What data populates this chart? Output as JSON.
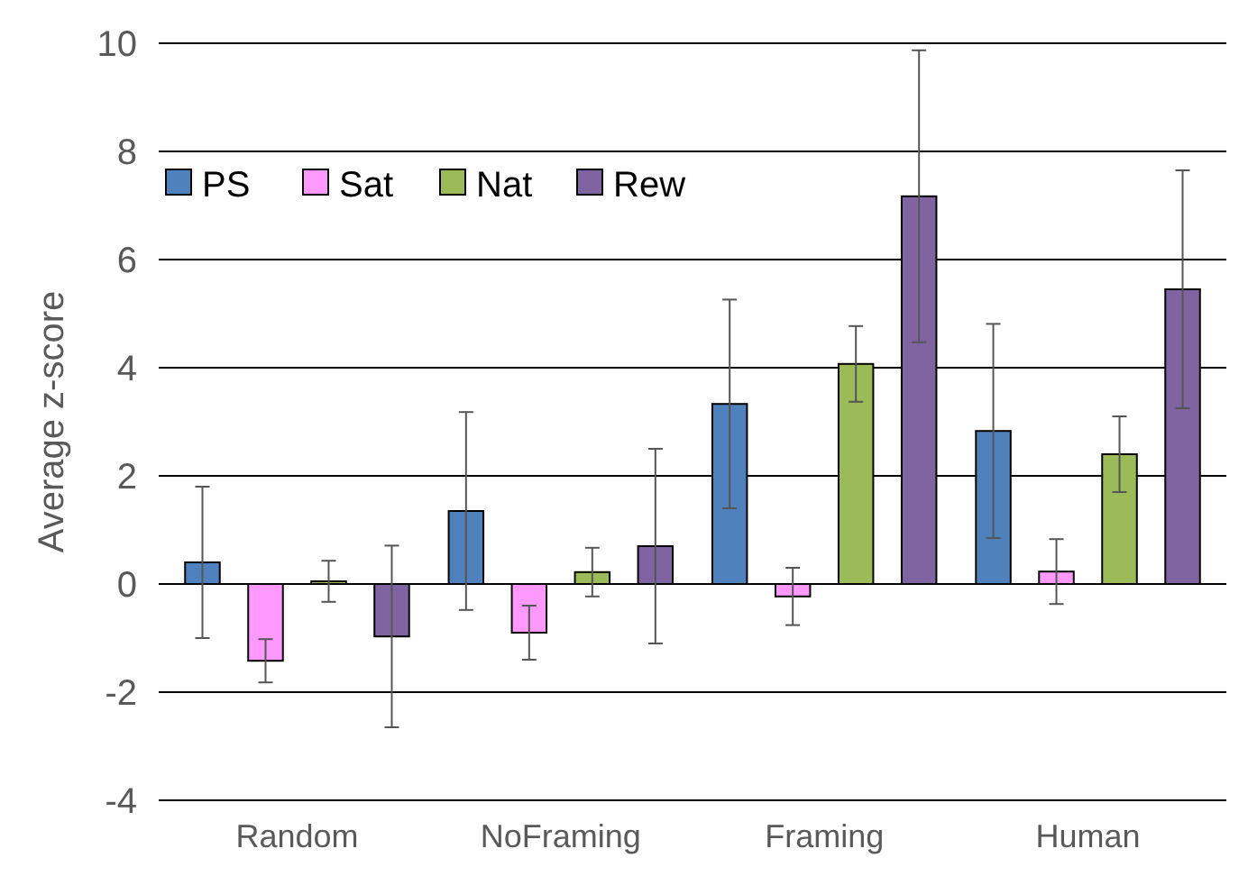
{
  "chart_data": {
    "type": "bar",
    "ylabel": "Average z-score",
    "categories": [
      "Random",
      "NoFraming",
      "Framing",
      "Human"
    ],
    "series": [
      {
        "name": "PS",
        "color": "#4f81bd",
        "values": [
          0.4,
          1.35,
          3.33,
          2.83
        ],
        "errors": [
          1.4,
          1.83,
          1.93,
          1.98
        ]
      },
      {
        "name": "Sat",
        "color": "#ff99ff",
        "values": [
          -1.42,
          -0.9,
          -0.23,
          0.23
        ],
        "errors": [
          0.4,
          0.5,
          0.53,
          0.6
        ]
      },
      {
        "name": "Nat",
        "color": "#9bbb59",
        "values": [
          0.05,
          0.22,
          4.07,
          2.4
        ],
        "errors": [
          0.38,
          0.45,
          0.7,
          0.7
        ]
      },
      {
        "name": "Rew",
        "color": "#8064a2",
        "values": [
          -0.97,
          0.7,
          7.17,
          5.45
        ],
        "errors": [
          1.68,
          1.8,
          2.7,
          2.2
        ]
      }
    ],
    "ylim": [
      -4,
      10
    ],
    "yticks": [
      -4,
      -2,
      0,
      2,
      4,
      6,
      8,
      10
    ],
    "grid": "y",
    "legend": "top left"
  }
}
